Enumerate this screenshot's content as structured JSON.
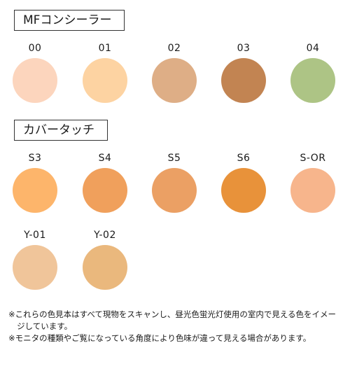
{
  "sections": [
    {
      "title": "MFコンシーラー",
      "swatches": [
        {
          "label": "00",
          "color": "#fcd5bd"
        },
        {
          "label": "01",
          "color": "#fdd3a2"
        },
        {
          "label": "02",
          "color": "#deae86"
        },
        {
          "label": "03",
          "color": "#c28452"
        },
        {
          "label": "04",
          "color": "#adc485"
        }
      ]
    },
    {
      "title": "カバータッチ",
      "swatches": [
        {
          "label": "S3",
          "color": "#fdb56b"
        },
        {
          "label": "S4",
          "color": "#f0a05c"
        },
        {
          "label": "S5",
          "color": "#eba064"
        },
        {
          "label": "S6",
          "color": "#e8923a"
        },
        {
          "label": "S-OR",
          "color": "#f7b58c"
        },
        {
          "label": "Y-01",
          "color": "#f0c59a"
        },
        {
          "label": "Y-02",
          "color": "#eab87d"
        }
      ]
    }
  ],
  "notes": [
    "※これらの色見本はすべて現物をスキャンし、昼光色蛍光灯使用の室内で見える色をイメージしています。",
    "※モニタの種類やご覧になっている角度により色味が違って見える場合があります。"
  ]
}
